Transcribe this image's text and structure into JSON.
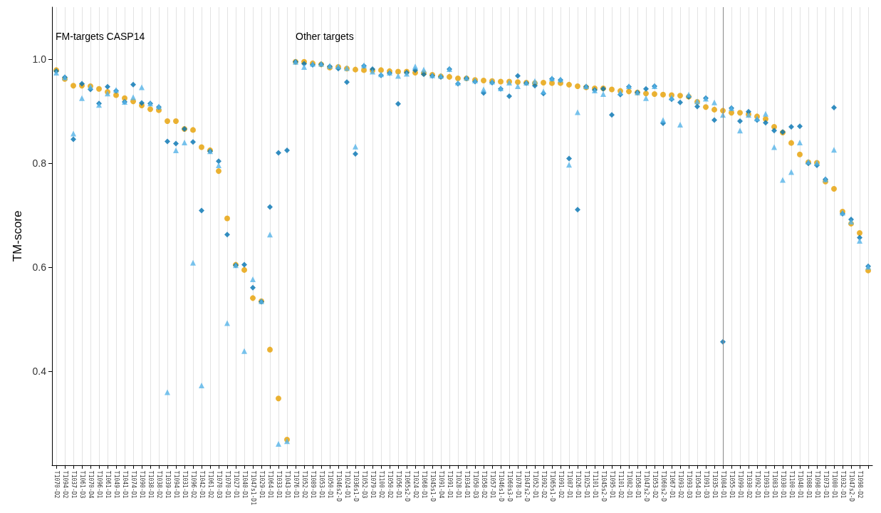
{
  "chart_data": {
    "type": "scatter",
    "ylabel": "TM-score",
    "categories": [
      "T1070-D2",
      "T1094-D2",
      "T1037-D1",
      "T1061-D3",
      "T1070-D4",
      "T1096-D1",
      "T1061-D1",
      "T1049-D1",
      "T1041-D1",
      "T1074-D1",
      "T1090-D1",
      "T1038-D1",
      "T1038-D2",
      "T1039-D1",
      "T1094-D1",
      "T1031-D1",
      "T1096-D2",
      "T1042-D1",
      "T1061-D2",
      "T1070-D3",
      "T1070-D1",
      "T1027-D1",
      "T1040-D1",
      "T1047s1-D1",
      "T1029-D1",
      "T1064-D1",
      "T1033-D1",
      "T1043-D1",
      "T1076-D1",
      "T1052-D2",
      "T1089-D1",
      "T1053-D1",
      "T1050-D1",
      "T1046s2-D",
      "T1024-D1",
      "T1036s1-D",
      "T1052-D3",
      "T1079-D1",
      "T1100-D2",
      "T1050-D2",
      "T1056-D1",
      "T1065s2-D",
      "T1024-D2",
      "T1068-D1",
      "T1045s1-D",
      "T1091-D4",
      "T1091-D1",
      "T1028-D1",
      "T1034-D1",
      "T1050-D3",
      "T1058-D2",
      "T1057-D1",
      "T1046s1-D",
      "T1060s3-D",
      "T1078-D1",
      "T1047s2-D",
      "T1052-D1",
      "T1092-D2",
      "T1065s1-D",
      "T1091-D2",
      "T1087-D1",
      "T1026-D1",
      "T1025-D1",
      "T1101-D1",
      "T1045s2-D",
      "T1095-D1",
      "T1101-D2",
      "T1082-D1",
      "T1058-D1",
      "T1047s2-D",
      "T1053-D2",
      "T1060s2-D",
      "T1067-D1",
      "T1093-D2",
      "T1093-D3",
      "T1054-D1",
      "T1091-D3",
      "T1035-D1",
      "T1084-D1",
      "T1055-D1",
      "T1099-D1",
      "T1030-D2",
      "T1092-D1",
      "T1093-D1",
      "T1083-D1",
      "T1030-D1",
      "T1100-D1",
      "T1048-D1",
      "T1088-D1",
      "T1098-D1",
      "T1073-D1",
      "T1080-D1",
      "T1032-D1",
      "T1047s2-D",
      "T1098-D2",
      null
    ],
    "series": [
      {
        "color": "#e69f00",
        "marker": "circle",
        "values": [
          0.979,
          0.962,
          0.949,
          0.949,
          0.948,
          0.943,
          0.937,
          0.931,
          0.925,
          0.919,
          0.911,
          0.904,
          0.902,
          0.881,
          0.881,
          0.866,
          0.864,
          0.831,
          0.825,
          0.785,
          0.694,
          0.605,
          0.595,
          0.541,
          0.535,
          0.442,
          0.348,
          0.269,
          0.995,
          0.995,
          0.992,
          0.99,
          0.984,
          0.985,
          0.982,
          0.98,
          0.979,
          0.978,
          0.979,
          0.977,
          0.976,
          0.976,
          0.974,
          0.973,
          0.97,
          0.967,
          0.966,
          0.963,
          0.963,
          0.96,
          0.959,
          0.958,
          0.957,
          0.957,
          0.956,
          0.955,
          0.954,
          0.955,
          0.954,
          0.954,
          0.951,
          0.948,
          0.946,
          0.944,
          0.944,
          0.942,
          0.939,
          0.938,
          0.936,
          0.934,
          0.933,
          0.932,
          0.931,
          0.93,
          0.928,
          0.918,
          0.908,
          0.903,
          0.901,
          0.897,
          0.897,
          0.894,
          0.89,
          0.885,
          0.87,
          0.859,
          0.839,
          0.817,
          0.802,
          0.801,
          0.765,
          0.751,
          0.707,
          0.684,
          0.666,
          0.594
        ]
      },
      {
        "color": "#0072b2",
        "marker": "diamond",
        "values": [
          0.977,
          0.965,
          0.846,
          0.953,
          0.942,
          0.915,
          0.947,
          0.939,
          0.918,
          0.951,
          0.916,
          0.915,
          0.908,
          0.842,
          0.838,
          0.866,
          0.841,
          0.709,
          0.823,
          0.804,
          0.663,
          0.604,
          0.605,
          0.561,
          0.534,
          0.716,
          0.82,
          0.825,
          0.995,
          0.991,
          0.989,
          0.99,
          0.986,
          0.982,
          0.956,
          0.818,
          0.987,
          0.981,
          0.969,
          0.973,
          0.914,
          0.974,
          0.979,
          0.971,
          0.968,
          0.966,
          0.981,
          0.953,
          0.963,
          0.957,
          0.935,
          0.955,
          0.943,
          0.929,
          0.968,
          0.954,
          0.949,
          0.934,
          0.962,
          0.96,
          0.809,
          0.711,
          0.947,
          0.941,
          0.943,
          0.893,
          0.932,
          0.947,
          0.936,
          0.943,
          0.948,
          0.877,
          0.923,
          0.917,
          0.928,
          0.909,
          0.925,
          0.883,
          0.457,
          0.906,
          0.881,
          0.899,
          0.883,
          0.878,
          0.863,
          0.86,
          0.87,
          0.871,
          0.8,
          0.796,
          0.769,
          0.907,
          0.703,
          0.692,
          0.657,
          0.602
        ]
      },
      {
        "color": "#56b4e9",
        "marker": "triangle",
        "values": [
          0.974,
          0.965,
          0.857,
          0.925,
          0.947,
          0.912,
          0.934,
          0.941,
          0.918,
          0.927,
          0.946,
          0.915,
          0.909,
          0.36,
          0.825,
          0.84,
          0.609,
          0.373,
          0.823,
          0.796,
          0.493,
          0.604,
          0.439,
          0.577,
          0.535,
          0.663,
          0.261,
          0.266,
          0.995,
          0.985,
          0.991,
          0.991,
          0.987,
          0.986,
          0.983,
          0.832,
          0.988,
          0.976,
          0.971,
          0.974,
          0.968,
          0.972,
          0.986,
          0.98,
          0.969,
          0.968,
          0.981,
          0.955,
          0.964,
          0.959,
          0.942,
          0.957,
          0.944,
          0.955,
          0.948,
          0.955,
          0.958,
          0.938,
          0.963,
          0.961,
          0.797,
          0.898,
          0.948,
          0.94,
          0.933,
          null,
          0.936,
          0.948,
          0.936,
          0.925,
          0.948,
          0.883,
          0.926,
          0.874,
          0.932,
          0.919,
          0.924,
          0.917,
          0.893,
          0.906,
          0.863,
          0.893,
          0.886,
          0.895,
          0.831,
          0.768,
          0.783,
          0.84,
          0.803,
          0.801,
          0.769,
          0.826,
          0.705,
          0.688,
          0.651,
          0.601
        ]
      }
    ],
    "ylim": [
      0.22,
      1.1
    ],
    "yticks": [
      0.4,
      0.6,
      0.8,
      {
        "value": 1,
        "label": "1.0"
      }
    ],
    "grid": "x",
    "ref_lines": [
      {
        "axis": "x",
        "value": "T1084-D1",
        "label": null,
        "color": "#888888"
      }
    ],
    "annotations": [
      "FM-targets CASP14",
      "Other targets"
    ]
  }
}
